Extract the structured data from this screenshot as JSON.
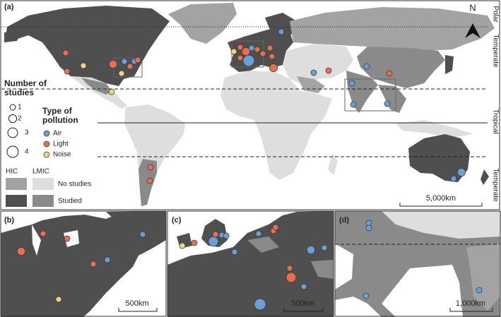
{
  "panel_labels": [
    "(a)",
    "(b)",
    "(c)",
    "(d)"
  ],
  "north": "N",
  "zones": [
    "Polar",
    "Temperate",
    "Tropical",
    "Temperate"
  ],
  "legend": {
    "size_title": "Number of studies",
    "sizes": [
      1,
      2,
      3,
      4
    ],
    "type_title": "Type of pollution",
    "types": [
      {
        "name": "Air",
        "color": "#6a9fd8"
      },
      {
        "name": "Light",
        "color": "#e8704e"
      },
      {
        "name": "Noise",
        "color": "#f1d37c"
      }
    ],
    "income_headers": [
      "HIC",
      "LMIC"
    ],
    "status": [
      "No studies",
      "Studied"
    ],
    "income_colors": {
      "hic_no_studies": "#a3a3a3",
      "lmic_no_studies": "#dedede",
      "hic_studied": "#4f4f4f",
      "lmic_studied": "#8a8a8a"
    }
  },
  "scale_bars": [
    "5,000km",
    "500km",
    "500km",
    "1,000km"
  ],
  "studies": {
    "a": [
      {
        "type": "Air",
        "count": 1
      },
      {
        "type": "Light",
        "count": 1
      },
      {
        "type": "Light",
        "count": 1
      },
      {
        "type": "Noise",
        "count": 1
      },
      {
        "type": "Light",
        "count": 2
      },
      {
        "type": "Air",
        "count": 1
      },
      {
        "type": "Light",
        "count": 1
      },
      {
        "type": "Air",
        "count": 1
      },
      {
        "type": "Light",
        "count": 1
      },
      {
        "type": "Noise",
        "count": 1
      },
      {
        "type": "Noise",
        "count": 1
      },
      {
        "type": "Light",
        "count": 1
      },
      {
        "type": "Light",
        "count": 2
      },
      {
        "type": "Air",
        "count": 1
      },
      {
        "type": "Light",
        "count": 1
      },
      {
        "type": "Light",
        "count": 1
      },
      {
        "type": "Air",
        "count": 4
      },
      {
        "type": "Light",
        "count": 1
      },
      {
        "type": "Light",
        "count": 1
      },
      {
        "type": "Light",
        "count": 1
      },
      {
        "type": "Noise",
        "count": 1
      },
      {
        "type": "Light",
        "count": 2
      },
      {
        "type": "Air",
        "count": 1
      },
      {
        "type": "Light",
        "count": 1
      },
      {
        "type": "Air",
        "count": 1
      },
      {
        "type": "Light",
        "count": 1
      },
      {
        "type": "Air",
        "count": 1
      },
      {
        "type": "Air",
        "count": 1
      },
      {
        "type": "Air",
        "count": 1
      },
      {
        "type": "Light",
        "count": 1
      },
      {
        "type": "Light",
        "count": 1
      },
      {
        "type": "Air",
        "count": 2
      },
      {
        "type": "Air",
        "count": 1
      }
    ],
    "b": [
      {
        "type": "Light",
        "count": 1
      },
      {
        "type": "Light",
        "count": 1
      },
      {
        "type": "Light",
        "count": 2
      },
      {
        "type": "Air",
        "count": 1
      },
      {
        "type": "Light",
        "count": 1
      },
      {
        "type": "Air",
        "count": 1
      },
      {
        "type": "Noise",
        "count": 1
      }
    ],
    "c": [
      {
        "type": "Light",
        "count": 1
      },
      {
        "type": "Air",
        "count": 3
      },
      {
        "type": "Light",
        "count": 1
      },
      {
        "type": "Air",
        "count": 1
      },
      {
        "type": "Air",
        "count": 1
      },
      {
        "type": "Air",
        "count": 1
      },
      {
        "type": "Air",
        "count": 1
      },
      {
        "type": "Light",
        "count": 1
      },
      {
        "type": "Light",
        "count": 1
      },
      {
        "type": "Air",
        "count": 2
      },
      {
        "type": "Air",
        "count": 1
      },
      {
        "type": "Light",
        "count": 3
      },
      {
        "type": "Light",
        "count": 1
      },
      {
        "type": "Air",
        "count": 1
      },
      {
        "type": "Air",
        "count": 4
      },
      {
        "type": "Noise",
        "count": 1
      }
    ],
    "d": [
      {
        "type": "Air",
        "count": 1
      },
      {
        "type": "Air",
        "count": 1
      },
      {
        "type": "Air",
        "count": 1
      },
      {
        "type": "Air",
        "count": 1
      }
    ]
  }
}
